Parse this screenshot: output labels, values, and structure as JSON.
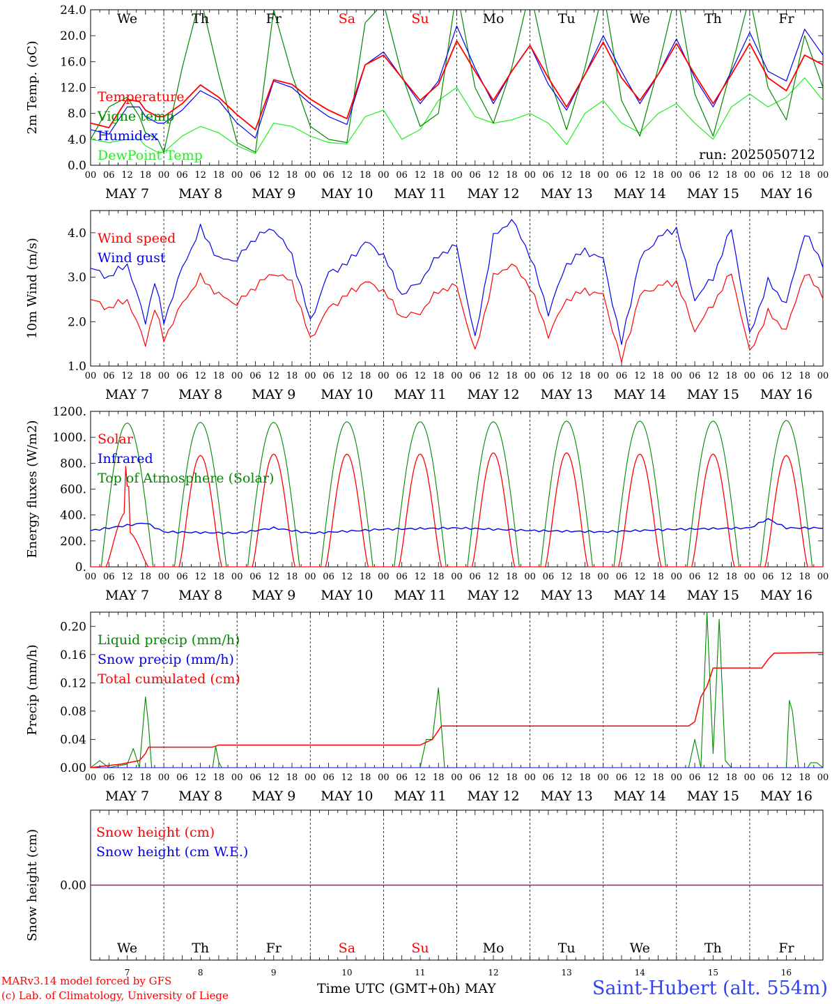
{
  "meta": {
    "run_label": "run: 2025050712",
    "month": "MAY",
    "xaxis_title": "Time UTC (GMT+0h)",
    "credit_line1": "MARv3.14 model forced by GFS",
    "credit_line2": "(c) Lab. of Climatology, University of Liege",
    "station": "Saint-Hubert (alt. 554m)"
  },
  "colors": {
    "red": "#ff0000",
    "blue": "#0000ee",
    "green": "#008800",
    "lightgreen": "#22ee22",
    "weekend": "#ff0000"
  },
  "chart_data": [
    {
      "type": "line",
      "id": "temperature",
      "ylabel": "2m Temp. (oC)",
      "ylim": [
        0,
        24
      ],
      "yticks": [
        0,
        4,
        8,
        12,
        16,
        20,
        24
      ],
      "ytick_labels": [
        "0.0",
        "4.0",
        "8.0",
        "12.0",
        "16.0",
        "20.0",
        "24.0"
      ],
      "x_unit": "hours since May 7 00 UTC",
      "x": [
        0,
        6,
        12,
        16,
        18,
        22,
        24,
        30,
        36,
        42,
        48,
        54,
        60,
        66,
        72,
        78,
        84,
        90,
        96,
        102,
        108,
        114,
        120,
        126,
        132,
        138,
        144,
        150,
        156,
        162,
        168,
        174,
        180,
        186,
        192,
        198,
        204,
        210,
        216,
        222,
        228,
        234,
        240
      ],
      "series": [
        {
          "name": "Temperature",
          "color": "#ff0000",
          "values": [
            6.5,
            5.8,
            10.2,
            9.8,
            8.5,
            7.5,
            7.5,
            9.5,
            12.4,
            10.5,
            7.8,
            5.5,
            13.2,
            12.5,
            10.2,
            8.5,
            7.2,
            15.5,
            17.0,
            13.5,
            10.0,
            12.5,
            19.2,
            14.5,
            10.0,
            14.5,
            18.5,
            13.5,
            9.0,
            14.0,
            19.0,
            13.5,
            10.0,
            14.0,
            18.8,
            14.0,
            9.5,
            14.0,
            18.8,
            13.5,
            11.5,
            17.0,
            15.5
          ]
        },
        {
          "name": "Vigne temp",
          "color": "#008800",
          "values": [
            4.0,
            9.0,
            10.5,
            7.5,
            5.0,
            4.0,
            2.0,
            15.0,
            26.0,
            14.0,
            3.5,
            2.0,
            24.0,
            14.0,
            6.0,
            4.0,
            3.5,
            22.0,
            25.0,
            14.0,
            6.0,
            8.0,
            27.0,
            12.0,
            6.5,
            15.0,
            27.0,
            14.0,
            5.5,
            15.0,
            27.0,
            10.0,
            4.5,
            15.0,
            27.0,
            11.0,
            4.5,
            15.0,
            26.0,
            12.0,
            7.0,
            20.0,
            12.0
          ]
        },
        {
          "name": "Humidex",
          "color": "#0000ee",
          "values": [
            5.5,
            4.8,
            9.0,
            9.0,
            7.5,
            6.5,
            6.5,
            8.5,
            11.5,
            10.0,
            6.5,
            4.2,
            13.0,
            12.0,
            9.5,
            7.5,
            6.3,
            15.5,
            17.5,
            13.5,
            9.5,
            13.0,
            21.5,
            15.0,
            9.5,
            14.5,
            18.5,
            12.5,
            8.5,
            14.0,
            20.0,
            14.5,
            9.5,
            14.0,
            19.5,
            13.5,
            9.0,
            14.5,
            20.5,
            14.5,
            13.0,
            21.0,
            17.0
          ]
        },
        {
          "name": "DewPoint Temp",
          "color": "#22ee22",
          "values": [
            4.0,
            3.5,
            4.0,
            4.0,
            3.0,
            2.0,
            2.0,
            4.5,
            6.0,
            5.0,
            3.0,
            1.8,
            6.5,
            6.0,
            4.5,
            3.5,
            3.3,
            7.5,
            8.5,
            4.0,
            5.5,
            10.0,
            12.0,
            7.5,
            6.5,
            7.0,
            8.0,
            6.5,
            3.2,
            8.0,
            10.0,
            6.5,
            5.0,
            8.0,
            9.5,
            6.5,
            4.0,
            9.0,
            11.0,
            9.0,
            10.5,
            13.5,
            10.0
          ]
        }
      ]
    },
    {
      "type": "line",
      "id": "wind",
      "ylabel": "10m Wind (m/s)",
      "ylim": [
        1,
        4.5
      ],
      "yticks": [
        1,
        2,
        3,
        4
      ],
      "ytick_labels": [
        "1.0",
        "2.0",
        "3.0",
        "4.0"
      ],
      "x_unit": "hours since May 7 00 UTC",
      "x": [
        0,
        6,
        12,
        18,
        21,
        24,
        30,
        36,
        42,
        48,
        54,
        60,
        66,
        72,
        78,
        84,
        90,
        96,
        102,
        108,
        114,
        120,
        126,
        132,
        138,
        144,
        150,
        156,
        162,
        168,
        174,
        180,
        186,
        192,
        198,
        204,
        210,
        216,
        222,
        228,
        234,
        240
      ],
      "series": [
        {
          "name": "Wind speed",
          "color": "#ff0000",
          "values": [
            2.5,
            2.3,
            2.5,
            1.5,
            2.3,
            1.6,
            2.4,
            3.0,
            2.6,
            2.4,
            2.8,
            3.1,
            2.9,
            1.6,
            2.3,
            2.6,
            2.9,
            2.7,
            2.1,
            2.2,
            2.7,
            2.8,
            1.3,
            3.0,
            3.3,
            2.8,
            1.7,
            2.5,
            2.7,
            2.6,
            1.1,
            2.6,
            2.8,
            2.9,
            1.8,
            2.4,
            3.1,
            1.3,
            2.2,
            1.8,
            3.1,
            2.6
          ]
        },
        {
          "name": "Wind gust",
          "color": "#0000ee",
          "values": [
            3.2,
            3.0,
            3.3,
            2.0,
            2.9,
            2.0,
            3.2,
            4.1,
            3.4,
            3.4,
            3.9,
            4.1,
            3.5,
            2.0,
            3.1,
            3.3,
            3.8,
            3.5,
            2.6,
            2.9,
            3.5,
            3.7,
            1.6,
            3.9,
            4.3,
            3.5,
            2.2,
            3.3,
            3.6,
            3.4,
            1.5,
            3.4,
            3.9,
            4.1,
            2.5,
            3.0,
            4.1,
            1.7,
            2.9,
            2.4,
            4.0,
            3.3
          ]
        }
      ]
    },
    {
      "type": "line",
      "id": "energy",
      "ylabel": "Energy fluxes (W/m2)",
      "ylim": [
        0,
        1200
      ],
      "yticks": [
        0,
        200,
        400,
        600,
        800,
        1000,
        1200
      ],
      "ytick_labels": [
        "0.",
        "200.",
        "400.",
        "600.",
        "800.",
        "1000.",
        "1200."
      ],
      "x_unit": "hours since May 7 00 UTC",
      "solar_peaks": [
        780,
        860,
        870,
        870,
        870,
        880,
        880,
        870,
        870,
        860
      ],
      "toa_peaks": [
        1110,
        1115,
        1115,
        1120,
        1120,
        1120,
        1125,
        1125,
        1125,
        1130
      ],
      "series": [
        {
          "name": "Solar",
          "color": "#ff0000"
        },
        {
          "name": "Infrared",
          "color": "#0000ee",
          "x": [
            0,
            6,
            12,
            18,
            24,
            48,
            60,
            72,
            96,
            120,
            144,
            168,
            192,
            216,
            222,
            228,
            240
          ],
          "values": [
            280,
            300,
            320,
            340,
            270,
            260,
            300,
            260,
            290,
            300,
            280,
            270,
            290,
            300,
            370,
            300,
            300
          ]
        },
        {
          "name": "Top of Atmosphere (Solar)",
          "color": "#008800"
        }
      ]
    },
    {
      "type": "line",
      "id": "precip",
      "ylabel": "Precip (mm/h)",
      "ylim": [
        0,
        0.22
      ],
      "yticks": [
        0,
        0.04,
        0.08,
        0.12,
        0.16,
        0.2
      ],
      "ytick_labels": [
        "0.00",
        "0.04",
        "0.08",
        "0.12",
        "0.16",
        "0.20"
      ],
      "x_unit": "hours since May 7 00 UTC",
      "series": [
        {
          "name": "Liquid precip (mm/h)",
          "color": "#008800",
          "x": [
            0,
            3,
            6,
            12,
            14,
            16,
            18,
            19,
            20,
            24,
            40,
            41,
            42,
            43,
            108,
            110,
            112,
            114,
            116,
            196,
            198,
            200,
            202,
            204,
            206,
            208,
            210,
            212,
            228,
            229,
            230,
            232,
            235,
            236,
            238,
            240
          ],
          "values": [
            0,
            0.01,
            0,
            0.005,
            0.027,
            0,
            0.1,
            0.06,
            0,
            0,
            0,
            0.03,
            0.008,
            0,
            0,
            0.04,
            0.04,
            0.113,
            0,
            0,
            0.04,
            0,
            0.22,
            0.02,
            0.21,
            0.01,
            0,
            0,
            0,
            0.095,
            0.08,
            0,
            0,
            0.007,
            0.007,
            0
          ]
        },
        {
          "name": "Snow precip (mm/h)",
          "color": "#0000ee",
          "x": [
            0,
            240
          ],
          "values": [
            0,
            0
          ]
        },
        {
          "name": "Total cumulated (cm)",
          "color": "#ff0000",
          "x": [
            0,
            10,
            16,
            18,
            19,
            24,
            40,
            42,
            108,
            112,
            115,
            120,
            196,
            198,
            200,
            202,
            204,
            220,
            222,
            224,
            240
          ],
          "values": [
            0,
            0.005,
            0.01,
            0.02,
            0.029,
            0.029,
            0.029,
            0.032,
            0.032,
            0.04,
            0.059,
            0.059,
            0.059,
            0.065,
            0.1,
            0.115,
            0.141,
            0.141,
            0.153,
            0.162,
            0.163
          ]
        }
      ]
    },
    {
      "type": "line",
      "id": "snow",
      "ylabel": "Snow height (cm)",
      "ylim": [
        -1,
        1
      ],
      "yticks": [
        0
      ],
      "ytick_labels": [
        "0.00"
      ],
      "x_unit": "hours since May 7 00 UTC",
      "series": [
        {
          "name": "Snow height (cm)",
          "color": "#ff0000",
          "x": [
            0,
            240
          ],
          "values": [
            0,
            0
          ]
        },
        {
          "name": "Snow height (cm W.E.)",
          "color": "#0000ee",
          "x": [
            0,
            240
          ],
          "values": [
            0,
            0
          ]
        }
      ]
    }
  ],
  "days": [
    {
      "abbr": "We",
      "num": "7",
      "weekend": false
    },
    {
      "abbr": "Th",
      "num": "8",
      "weekend": false
    },
    {
      "abbr": "Fr",
      "num": "9",
      "weekend": false
    },
    {
      "abbr": "Sa",
      "num": "10",
      "weekend": true
    },
    {
      "abbr": "Su",
      "num": "11",
      "weekend": true
    },
    {
      "abbr": "Mo",
      "num": "12",
      "weekend": false
    },
    {
      "abbr": "Tu",
      "num": "13",
      "weekend": false
    },
    {
      "abbr": "We",
      "num": "14",
      "weekend": false
    },
    {
      "abbr": "Th",
      "num": "15",
      "weekend": false
    },
    {
      "abbr": "Fr",
      "num": "16",
      "weekend": false
    }
  ],
  "hour_labels": [
    "00",
    "06",
    "12",
    "18"
  ],
  "end_hour_label": "00"
}
